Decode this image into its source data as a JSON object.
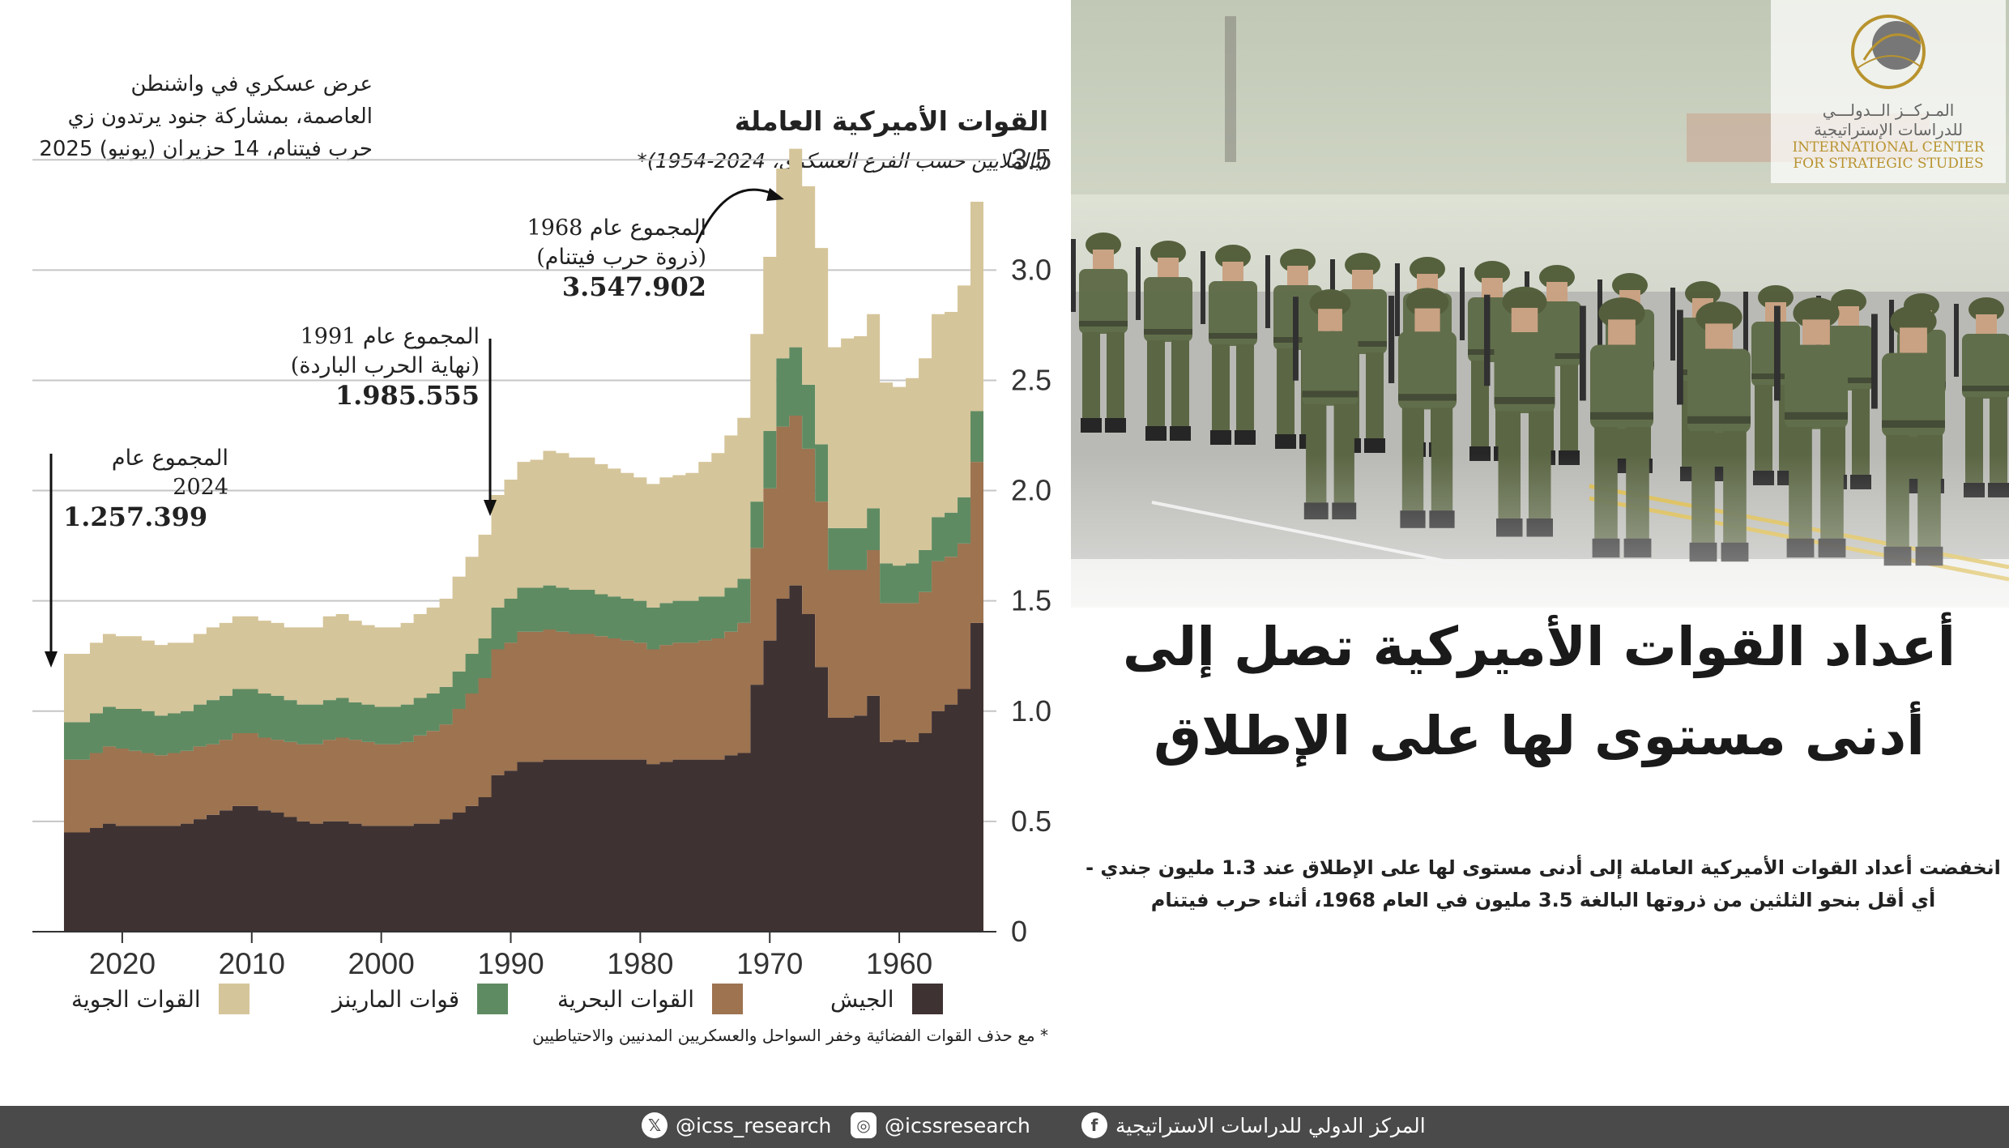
{
  "caption": {
    "line1": "عرض عسكري في واشنطن",
    "line2": "العاصمة، بمشاركة جنود يرتدون زي",
    "line3": "حرب فيتنام، 14 حزيران (يونيو) 2025"
  },
  "chart_data": {
    "type": "area",
    "stacking": "stacked",
    "title": "القوات الأميركية العاملة",
    "subtitle": "(بالملايين حسب الفرع العسكري، 2024-1954)*",
    "x_direction": "reversed (1954 on the right, 2024 on the left)",
    "x": [
      1954,
      1955,
      1956,
      1957,
      1958,
      1959,
      1960,
      1961,
      1962,
      1963,
      1964,
      1965,
      1966,
      1967,
      1968,
      1969,
      1970,
      1971,
      1972,
      1973,
      1974,
      1975,
      1976,
      1977,
      1978,
      1979,
      1980,
      1981,
      1982,
      1983,
      1984,
      1985,
      1986,
      1987,
      1988,
      1989,
      1990,
      1991,
      1992,
      1993,
      1994,
      1995,
      1996,
      1997,
      1998,
      1999,
      2000,
      2001,
      2002,
      2003,
      2004,
      2005,
      2006,
      2007,
      2008,
      2009,
      2010,
      2011,
      2012,
      2013,
      2014,
      2015,
      2016,
      2017,
      2018,
      2019,
      2020,
      2021,
      2022,
      2023,
      2024
    ],
    "xlim": [
      2026,
      1953
    ],
    "ylim": [
      0,
      3.6
    ],
    "yticks": [
      "0",
      "0.5",
      "1.0",
      "1.5",
      "2.0",
      "2.5",
      "3.0",
      "3.5"
    ],
    "xticks": [
      "2020",
      "2010",
      "2000",
      "1990",
      "1980",
      "1970",
      "1960"
    ],
    "xtick_values": [
      2020,
      2010,
      2000,
      1990,
      1980,
      1970,
      1960
    ],
    "series": [
      {
        "name": "الجيش",
        "color": "#3f3232",
        "values": [
          1.4,
          1.1,
          1.03,
          1.0,
          0.9,
          0.86,
          0.87,
          0.86,
          1.07,
          0.98,
          0.97,
          0.97,
          1.2,
          1.44,
          1.57,
          1.51,
          1.32,
          1.12,
          0.81,
          0.8,
          0.78,
          0.78,
          0.78,
          0.78,
          0.77,
          0.76,
          0.78,
          0.78,
          0.78,
          0.78,
          0.78,
          0.78,
          0.78,
          0.78,
          0.77,
          0.77,
          0.73,
          0.71,
          0.61,
          0.57,
          0.54,
          0.51,
          0.49,
          0.49,
          0.48,
          0.48,
          0.48,
          0.48,
          0.49,
          0.5,
          0.5,
          0.49,
          0.5,
          0.52,
          0.54,
          0.55,
          0.57,
          0.57,
          0.55,
          0.53,
          0.51,
          0.49,
          0.48,
          0.48,
          0.48,
          0.48,
          0.48,
          0.49,
          0.47,
          0.45,
          0.45
        ]
      },
      {
        "name": "القوات البحرية",
        "color": "#9d7350",
        "values": [
          0.73,
          0.66,
          0.67,
          0.68,
          0.64,
          0.63,
          0.62,
          0.63,
          0.66,
          0.66,
          0.67,
          0.67,
          0.75,
          0.75,
          0.77,
          0.78,
          0.69,
          0.62,
          0.59,
          0.56,
          0.55,
          0.54,
          0.53,
          0.53,
          0.53,
          0.52,
          0.53,
          0.54,
          0.55,
          0.56,
          0.57,
          0.57,
          0.58,
          0.59,
          0.59,
          0.59,
          0.58,
          0.57,
          0.54,
          0.51,
          0.47,
          0.43,
          0.42,
          0.4,
          0.38,
          0.37,
          0.37,
          0.38,
          0.38,
          0.38,
          0.37,
          0.36,
          0.35,
          0.34,
          0.33,
          0.33,
          0.33,
          0.33,
          0.32,
          0.32,
          0.33,
          0.33,
          0.33,
          0.32,
          0.33,
          0.34,
          0.35,
          0.35,
          0.34,
          0.33,
          0.33
        ]
      },
      {
        "name": "قوات المارينز",
        "color": "#5f8b62",
        "values": [
          0.23,
          0.21,
          0.2,
          0.2,
          0.19,
          0.18,
          0.17,
          0.18,
          0.19,
          0.19,
          0.19,
          0.19,
          0.26,
          0.29,
          0.31,
          0.31,
          0.26,
          0.21,
          0.2,
          0.2,
          0.19,
          0.2,
          0.19,
          0.19,
          0.19,
          0.19,
          0.19,
          0.19,
          0.19,
          0.19,
          0.2,
          0.2,
          0.2,
          0.2,
          0.2,
          0.2,
          0.2,
          0.19,
          0.18,
          0.18,
          0.17,
          0.17,
          0.17,
          0.17,
          0.17,
          0.17,
          0.17,
          0.17,
          0.17,
          0.18,
          0.18,
          0.18,
          0.18,
          0.19,
          0.2,
          0.2,
          0.2,
          0.2,
          0.2,
          0.2,
          0.19,
          0.18,
          0.18,
          0.18,
          0.19,
          0.19,
          0.18,
          0.18,
          0.18,
          0.17,
          0.17
        ]
      },
      {
        "name": "القوات الجوية",
        "color": "#d5c59a",
        "values": [
          0.95,
          0.96,
          0.91,
          0.92,
          0.87,
          0.84,
          0.81,
          0.82,
          0.88,
          0.87,
          0.86,
          0.82,
          0.89,
          0.9,
          0.9,
          0.86,
          0.79,
          0.76,
          0.73,
          0.69,
          0.65,
          0.61,
          0.58,
          0.57,
          0.57,
          0.56,
          0.56,
          0.57,
          0.58,
          0.59,
          0.6,
          0.6,
          0.61,
          0.61,
          0.58,
          0.57,
          0.54,
          0.51,
          0.47,
          0.44,
          0.43,
          0.4,
          0.39,
          0.38,
          0.37,
          0.36,
          0.36,
          0.36,
          0.37,
          0.38,
          0.38,
          0.35,
          0.35,
          0.33,
          0.33,
          0.33,
          0.33,
          0.33,
          0.33,
          0.33,
          0.32,
          0.31,
          0.32,
          0.32,
          0.32,
          0.33,
          0.33,
          0.33,
          0.32,
          0.31,
          0.31
        ]
      }
    ],
    "annotations": [
      {
        "label": "المجموع عام 1968",
        "sublabel": "(ذروة حرب فيتنام)",
        "value": "3.547.902"
      },
      {
        "label": "المجموع عام 1991",
        "sublabel": "(نهاية الحرب الباردة)",
        "value": "1.985.555"
      },
      {
        "label": "المجموع عام 2024",
        "value": "1.257.399"
      }
    ],
    "footnote": "* مع حذف القوات الفضائية وخفر السواحل والعسكريين المدنيين والاحتياطيين"
  },
  "headline": {
    "line1": "أعداد القوات الأميركية تصل إلى",
    "line2": "أدنى مستوى لها على الإطلاق"
  },
  "description": {
    "line1": "انخفضت أعداد القوات الأميركية العاملة إلى أدنى مستوى لها على الإطلاق عند 1.3 مليون جندي -",
    "line2": "أي أقل بنحو الثلثين من ذروتها البالغة 3.5 مليون في العام 1968، أثناء حرب فيتنام"
  },
  "logo": {
    "arabic_line1": "المـركــز الــدولـــي",
    "arabic_line2": "للدراسات الإستراتيجية",
    "english_line1": "INTERNATIONAL CENTER",
    "english_line2": "FOR STRATEGIC STUDIES"
  },
  "footer": {
    "facebook": "المركز الدولي للدراسات الاستراتيجية",
    "instagram": "@icssresearch",
    "x": "@icss_research"
  },
  "colors": {
    "army": "#3f3232",
    "navy": "#9d7350",
    "marines": "#5f8b62",
    "airforce": "#d5c59a",
    "footer_bg": "#4a4a4a",
    "logo_gold": "#b8932e"
  }
}
